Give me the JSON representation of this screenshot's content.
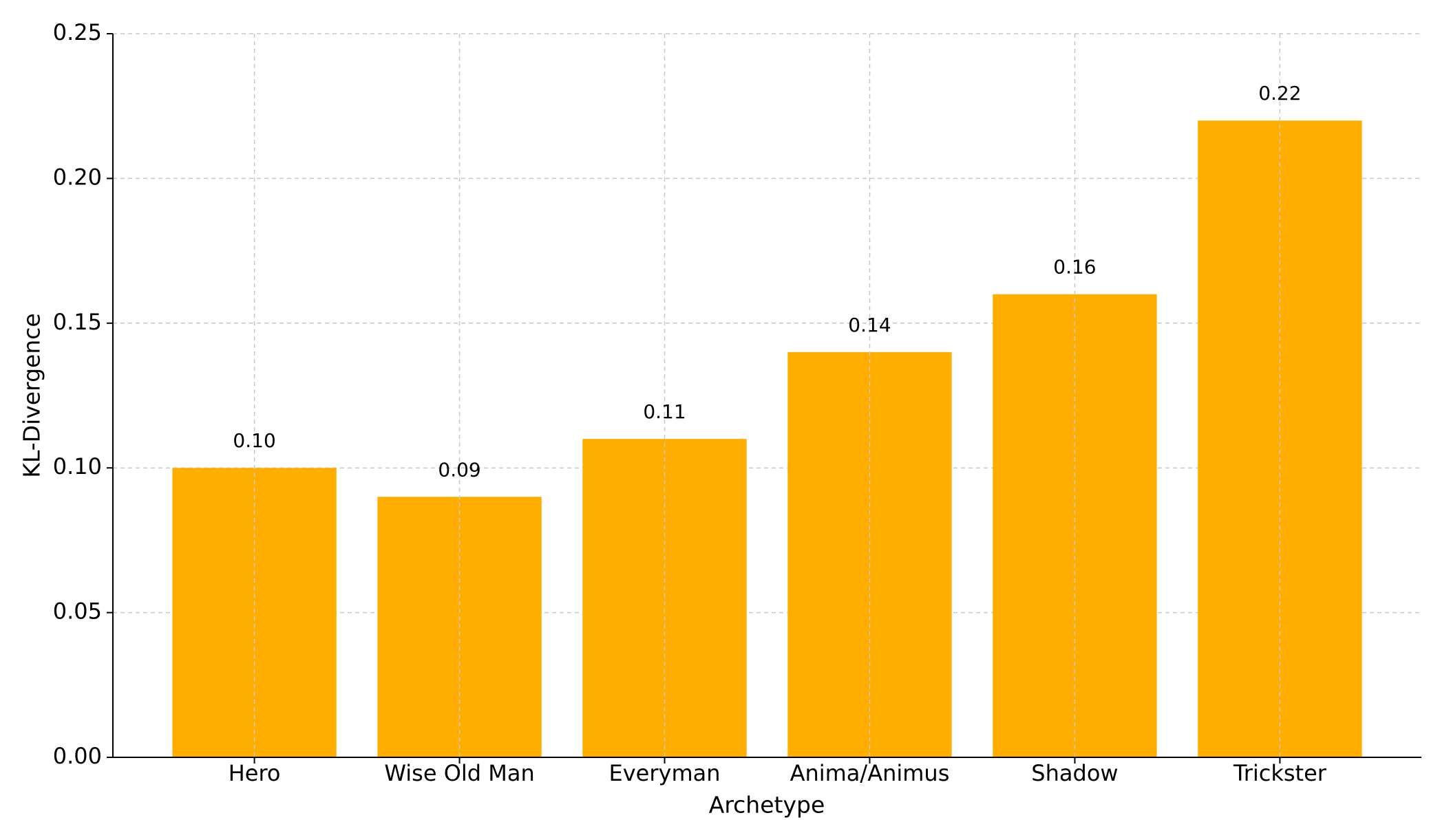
{
  "chart_data": {
    "type": "bar",
    "xlabel": "Archetype",
    "ylabel": "KL-Divergence",
    "categories": [
      "Hero",
      "Wise Old Man",
      "Everyman",
      "Anima/Animus",
      "Shadow",
      "Trickster"
    ],
    "values": [
      0.1,
      0.09,
      0.11,
      0.14,
      0.16,
      0.22
    ],
    "value_labels": [
      "0.10",
      "0.09",
      "0.11",
      "0.14",
      "0.16",
      "0.22"
    ],
    "color": "#ffae00",
    "ylim": [
      0,
      0.25
    ],
    "yticks": [
      {
        "value": 0,
        "label": "0.00"
      },
      {
        "value": 0.05,
        "label": "0.05"
      },
      {
        "value": 0.1,
        "label": "0.10"
      },
      {
        "value": 0.15,
        "label": "0.15"
      },
      {
        "value": 0.2,
        "label": "0.20"
      },
      {
        "value": 0.25,
        "label": "0.25"
      }
    ],
    "grid": true
  }
}
